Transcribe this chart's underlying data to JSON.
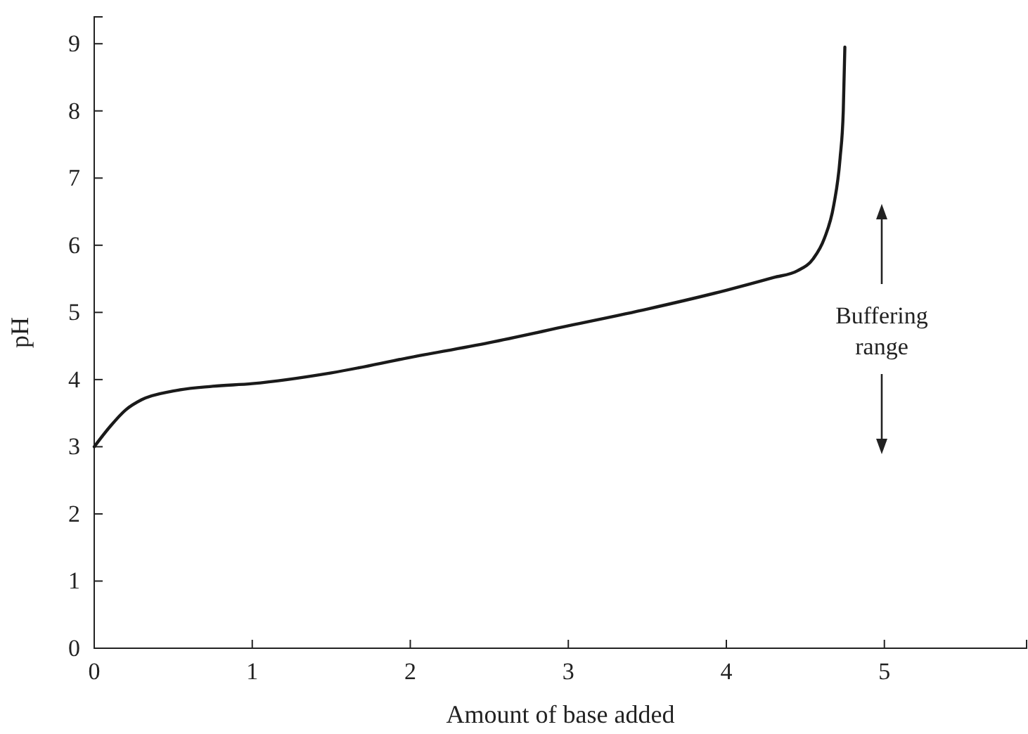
{
  "chart_data": {
    "type": "line",
    "xlabel": "Amount of base added",
    "ylabel": "pH",
    "xlim": [
      0,
      5.9
    ],
    "ylim": [
      0,
      9.4
    ],
    "xticks": [
      0,
      1,
      2,
      3,
      4,
      5
    ],
    "yticks": [
      0,
      1,
      2,
      3,
      4,
      5,
      6,
      7,
      8,
      9
    ],
    "grid": false,
    "marker": "none",
    "line_style": "solid",
    "series": [
      {
        "color": "#1a1a1a",
        "x": [
          0,
          0.1,
          0.2,
          0.3,
          0.5,
          0.75,
          1,
          1.5,
          2,
          2.5,
          3,
          3.5,
          4,
          4.3,
          4.45,
          4.55,
          4.62,
          4.68,
          4.72,
          4.74,
          4.75
        ],
        "values": [
          3.0,
          3.3,
          3.55,
          3.7,
          3.83,
          3.9,
          3.94,
          4.1,
          4.33,
          4.55,
          4.8,
          5.05,
          5.33,
          5.52,
          5.62,
          5.8,
          6.1,
          6.6,
          7.3,
          8.0,
          8.95
        ]
      }
    ],
    "annotations": [
      "Buffering range"
    ]
  }
}
